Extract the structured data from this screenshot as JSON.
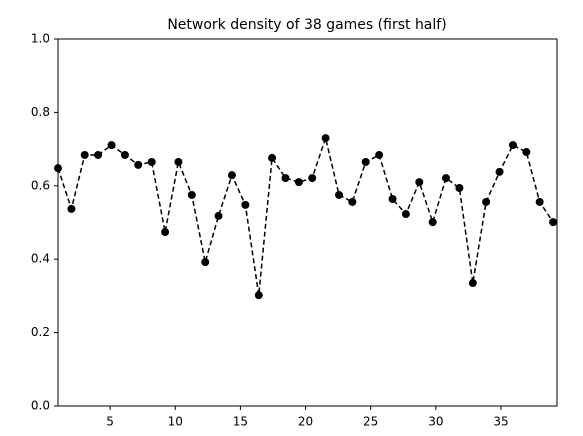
{
  "chart_data": {
    "type": "line",
    "title": "Network density of 38 games (first half)",
    "series": [
      {
        "color": "#000000",
        "x": [
          1,
          2.03,
          3.05,
          4.08,
          5.11,
          6.14,
          7.16,
          8.19,
          9.22,
          10.24,
          11.27,
          12.3,
          13.32,
          14.35,
          15.38,
          16.41,
          17.43,
          18.46,
          19.49,
          20.51,
          21.54,
          22.57,
          23.59,
          24.62,
          25.65,
          26.68,
          27.7,
          28.73,
          29.76,
          30.78,
          31.81,
          32.84,
          33.86,
          34.89,
          35.92,
          36.95,
          37.97,
          39
        ],
        "values": [
          0.648,
          0.537,
          0.684,
          0.684,
          0.711,
          0.684,
          0.657,
          0.665,
          0.474,
          0.665,
          0.575,
          0.392,
          0.518,
          0.629,
          0.548,
          0.302,
          0.676,
          0.621,
          0.61,
          0.621,
          0.73,
          0.575,
          0.556,
          0.665,
          0.684,
          0.564,
          0.523,
          0.61,
          0.501,
          0.621,
          0.594,
          0.335,
          0.556,
          0.638,
          0.711,
          0.692,
          0.556,
          0.501
        ]
      }
    ],
    "xlim": [
      1,
      39.3
    ],
    "xticks": [
      5,
      10,
      15,
      20,
      25,
      30,
      35
    ],
    "ylim": [
      0,
      1
    ],
    "yticks": [
      {
        "value": 0,
        "label": "0.0"
      },
      {
        "value": 0.2,
        "label": "0.2"
      },
      {
        "value": 0.4,
        "label": "0.4"
      },
      {
        "value": 0.6,
        "label": "0.6"
      },
      {
        "value": 0.8,
        "label": "0.8"
      },
      {
        "value": 1,
        "label": "1.0"
      }
    ],
    "line_style": "dashed",
    "marker": "circle"
  }
}
